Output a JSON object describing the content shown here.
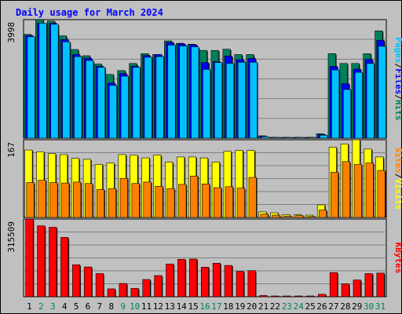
{
  "chart_data": {
    "type": "bar",
    "title": "Daily usage for March 2024",
    "categories": [
      "1",
      "2",
      "3",
      "4",
      "5",
      "6",
      "7",
      "8",
      "9",
      "10",
      "11",
      "12",
      "13",
      "14",
      "15",
      "16",
      "17",
      "18",
      "19",
      "20",
      "21",
      "22",
      "23",
      "24",
      "25",
      "26",
      "27",
      "28",
      "29",
      "30",
      "31"
    ],
    "weekend_days": [
      "2",
      "3",
      "9",
      "10",
      "16",
      "17",
      "23",
      "24",
      "30",
      "31"
    ],
    "panels": [
      {
        "id": "hits",
        "max_label": "3998",
        "ymax": 3998,
        "series": [
          {
            "name": "Hits",
            "color": "#00805c",
            "values": [
              3500,
              3998,
              3950,
              3450,
              2990,
              2780,
              2500,
              2150,
              2280,
              2520,
              2850,
              2820,
              3280,
              3200,
              3170,
              2960,
              2960,
              3000,
              2820,
              2820,
              80,
              20,
              20,
              20,
              20,
              150,
              2850,
              2520,
              2520,
              2850,
              3620
            ]
          },
          {
            "name": "Files",
            "color": "#0000ff",
            "values": [
              3460,
              3880,
              3880,
              3330,
              2820,
              2700,
              2420,
              1860,
              2180,
              2430,
              2790,
              2820,
              3230,
              3180,
              3150,
              2550,
              2580,
              2770,
              2650,
              2690,
              60,
              10,
              10,
              10,
              10,
              120,
              2420,
              1840,
              2330,
              2660,
              3300
            ]
          },
          {
            "name": "Pages",
            "color": "#00c0ff",
            "values": [
              3420,
              3880,
              3840,
              3250,
              2750,
              2620,
              2390,
              1780,
              2090,
              2390,
              2730,
              2750,
              3140,
              3110,
              3080,
              2320,
              2550,
              2520,
              2560,
              2560,
              50,
              10,
              10,
              10,
              10,
              100,
              2300,
              1640,
              2220,
              2520,
              3100
            ]
          }
        ]
      },
      {
        "id": "visits",
        "max_label": "167",
        "ymax": 167,
        "series": [
          {
            "name": "Visits",
            "color": "#ffff00",
            "values": [
              145,
              141,
              137,
              135,
              127,
              125,
              114,
              117,
              135,
              134,
              128,
              134,
              119,
              130,
              130,
              128,
              119,
              142,
              144,
              144,
              12,
              10,
              6,
              6,
              5,
              27,
              151,
              158,
              167,
              147,
              130
            ]
          },
          {
            "name": "Sites",
            "color": "#ff8000",
            "values": [
              75,
              80,
              75,
              74,
              76,
              73,
              60,
              62,
              84,
              73,
              76,
              67,
              62,
              71,
              89,
              72,
              64,
              66,
              63,
              86,
              7,
              5,
              3,
              4,
              2,
              16,
              97,
              120,
              114,
              117,
              101
            ]
          }
        ]
      },
      {
        "id": "kbytes",
        "max_label": "315509",
        "ymax": 315509,
        "series": [
          {
            "name": "KBytes",
            "color": "#ff0000",
            "values": [
              315509,
              288000,
              282000,
              241000,
              130000,
              121000,
              94000,
              32000,
              54000,
              34000,
              70000,
              86000,
              133000,
              152000,
              153000,
              120000,
              136000,
              127000,
              103000,
              106000,
              5000,
              2000,
              2000,
              2000,
              2000,
              10000,
              98000,
              52000,
              68000,
              94000,
              96000
            ]
          }
        ]
      }
    ],
    "legend_right": [
      {
        "parts": [
          {
            "text": "Pages",
            "color": "#00c0ff"
          },
          {
            "text": "/",
            "color": "#000000"
          },
          {
            "text": "Files",
            "color": "#0000ff"
          },
          {
            "text": "/",
            "color": "#000000"
          },
          {
            "text": "Hits",
            "color": "#00805c"
          }
        ]
      },
      {
        "parts": [
          {
            "text": "Sites",
            "color": "#ff8000"
          },
          {
            "text": "/",
            "color": "#000000"
          },
          {
            "text": "Visits",
            "color": "#ffff00"
          }
        ]
      },
      {
        "parts": [
          {
            "text": "KBytes",
            "color": "#ff0000"
          }
        ]
      }
    ],
    "grid": true
  }
}
